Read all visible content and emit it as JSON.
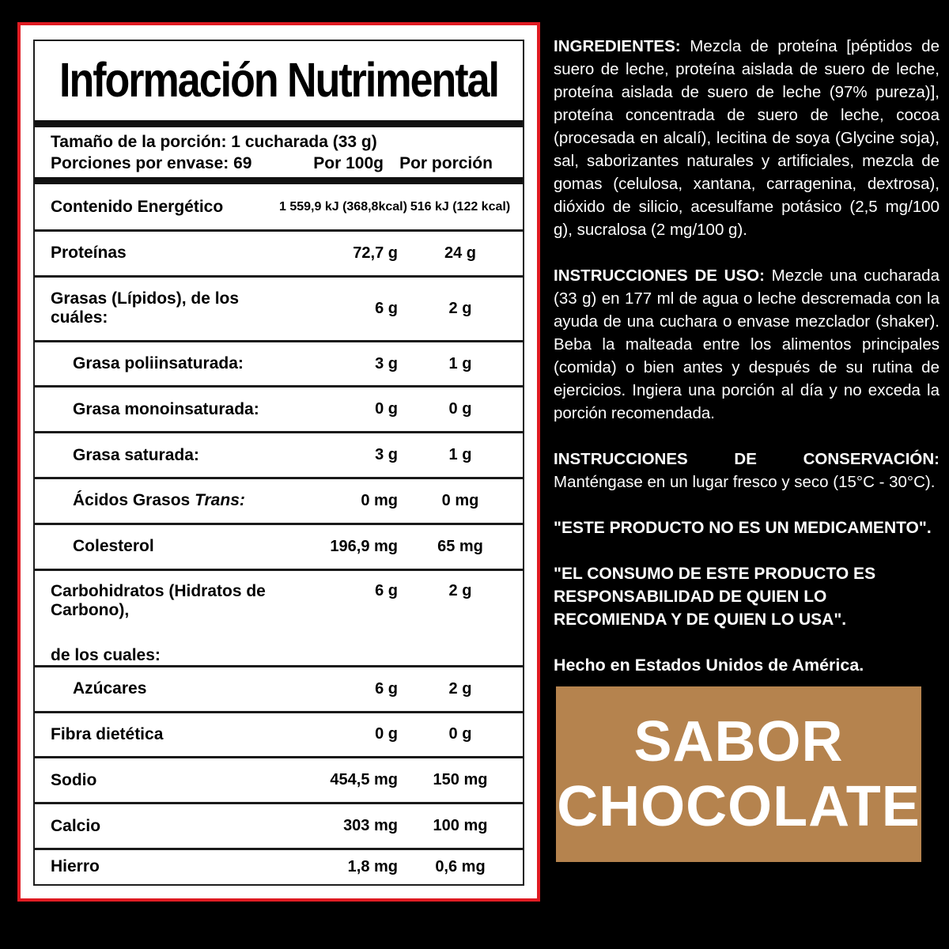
{
  "nutrition_table": {
    "title": "Información Nutrimental",
    "serving": {
      "line1": "Tamaño de la porción: 1 cucharada (33 g)",
      "line2": "Porciones por envase: 69",
      "col1_header": "Por 100g",
      "col2_header": "Por porción"
    },
    "rows": [
      {
        "label": "Contenido Energético",
        "per_100g": "1 559,9 kJ (368,8kcal)",
        "per_portion": "516 kJ (122 kcal)",
        "indent": false
      },
      {
        "label": "Proteínas",
        "per_100g": "72,7 g",
        "per_portion": "24 g",
        "indent": false
      },
      {
        "label": "Grasas (Lípidos), de los cuáles:",
        "per_100g": "6 g",
        "per_portion": "2 g",
        "indent": false
      },
      {
        "label": "Grasa poliinsaturada:",
        "per_100g": "3 g",
        "per_portion": "1 g",
        "indent": true
      },
      {
        "label": "Grasa monoinsaturada:",
        "per_100g": "0 g",
        "per_portion": "0 g",
        "indent": true
      },
      {
        "label": "Grasa saturada:",
        "per_100g": "3 g",
        "per_portion": "1 g",
        "indent": true
      },
      {
        "label": "Ácidos Grasos ",
        "label_italic": "Trans:",
        "per_100g": "0 mg",
        "per_portion": "0 mg",
        "indent": true
      },
      {
        "label": "Colesterol",
        "per_100g": "196,9 mg",
        "per_portion": "65 mg",
        "indent": true
      },
      {
        "label": "Carbohidratos (Hidratos de Carbono),",
        "label_line2": "de los cuales:",
        "per_100g": "6 g",
        "per_portion": "2 g",
        "indent": false
      },
      {
        "label": "Azúcares",
        "per_100g": "6 g",
        "per_portion": "2 g",
        "indent": true
      },
      {
        "label": "Fibra dietética",
        "per_100g": "0 g",
        "per_portion": "0 g",
        "indent": false
      },
      {
        "label": "Sodio",
        "per_100g": "454,5 mg",
        "per_portion": "150 mg",
        "indent": false
      },
      {
        "label": "Calcio",
        "per_100g": "303 mg",
        "per_portion": "100 mg",
        "indent": false
      },
      {
        "label": "Hierro",
        "per_100g": "1,8 mg",
        "per_portion": "0,6 mg",
        "indent": false
      }
    ]
  },
  "info_column": {
    "sections": [
      {
        "label": "INGREDIENTES:",
        "text": "Mezcla de proteína [péptidos de suero de leche, proteína aislada de suero de leche, proteína aislada de suero de leche (97% pureza)], proteína concentrada de suero de leche, cocoa (procesada en alcalí), lecitina de soya (Glycine soja), sal, saborizantes naturales y artificiales, mezcla de gomas (celulosa, xantana, carragenina, dextrosa), dióxido de silicio, acesulfame potásico (2,5 mg/100 g), sucralosa (2 mg/100 g)."
      },
      {
        "label": "INSTRUCCIONES DE USO:",
        "text": "Mezcle una cucharada (33 g) en 177 ml de agua o leche descremada con la ayuda de una cuchara o envase mezclador (shaker). Beba la malteada entre los alimentos principales (comida) o bien antes y después de su rutina de ejercicios. Ingiera una porción al día y no exceda la porción recomendada."
      },
      {
        "label": "INSTRUCCIONES DE CONSERVACIÓN:",
        "text": "Manténgase en un lugar fresco y seco (15°C - 30°C)."
      }
    ],
    "quote1": "\"ESTE PRODUCTO NO ES UN MEDICAMENTO\".",
    "quote2": "\"EL CONSUMO DE ESTE PRODUCTO ES RESPONSABILIDAD DE QUIEN LO RECOMIENDA Y DE QUIEN LO USA\".",
    "made_in": "Hecho en Estados Unidos de América."
  },
  "flavor_box": {
    "line1": "SABOR",
    "line2": "CHOCOLATE"
  },
  "colors": {
    "background": "#000000",
    "panel_border_red": "#e01b22",
    "flavor_brown": "#b5834e",
    "text_dark": "#000000",
    "text_light": "#ffffff"
  }
}
